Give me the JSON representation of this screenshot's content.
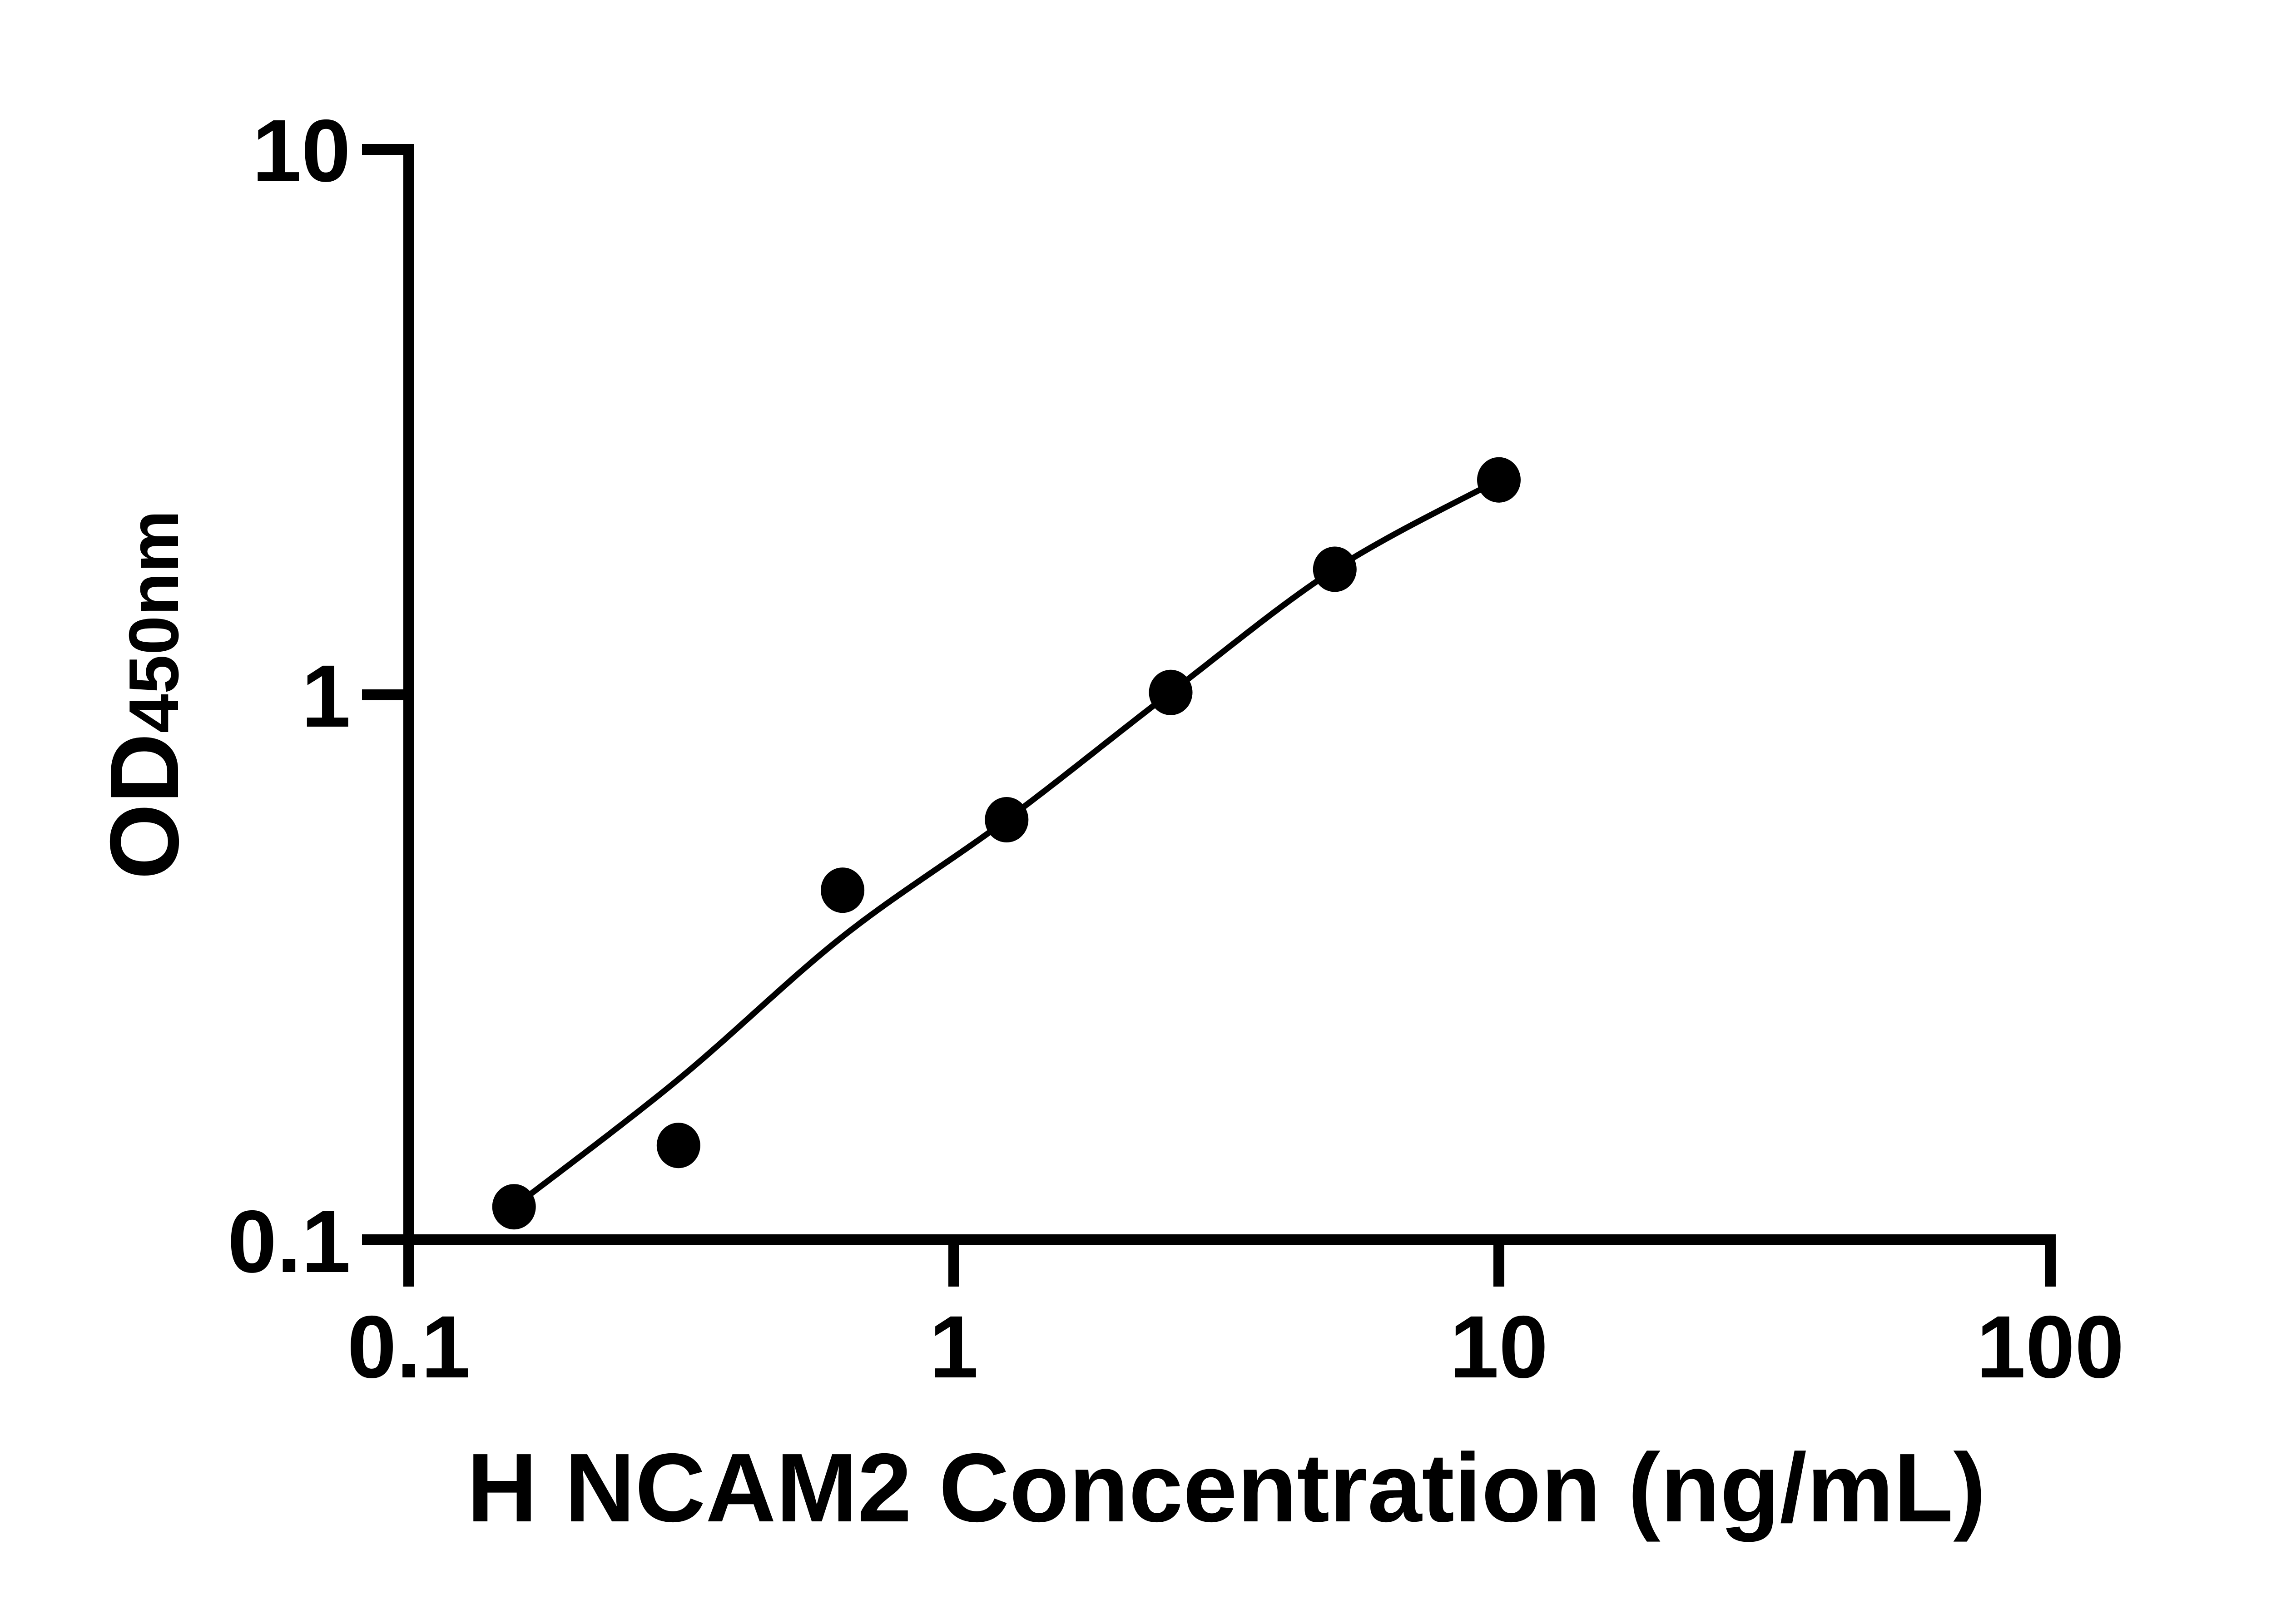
{
  "page": {
    "background": "#ffffff",
    "foreground": "#000000"
  },
  "chart_data": {
    "type": "scatter",
    "title": "",
    "xlabel": "H NCAM2 Concentration (ng/mL)",
    "ylabel_base": "OD",
    "ylabel_subscript": "450nm",
    "xscale": "log",
    "yscale": "log",
    "xlim": [
      0.1,
      100
    ],
    "ylim": [
      0.1,
      10
    ],
    "x_tick_values": [
      0.1,
      1,
      10,
      100
    ],
    "x_tick_labels": [
      "0.1",
      "1",
      "10",
      "100"
    ],
    "y_tick_values": [
      10,
      1,
      0.1
    ],
    "y_tick_labels": [
      "10",
      "1",
      "0.1"
    ],
    "grid": false,
    "legend": false,
    "series": [
      {
        "name": "standard-curve-points",
        "marker": "filled-circle",
        "color": "#000000",
        "x": [
          0.156,
          0.3125,
          0.625,
          1.25,
          2.5,
          5,
          10
        ],
        "y": [
          0.115,
          0.149,
          0.438,
          0.59,
          1.01,
          1.7,
          2.48
        ]
      }
    ],
    "trend_line": {
      "name": "fitted-curve",
      "color": "#000000",
      "points": [
        [
          0.156,
          0.115
        ],
        [
          0.3125,
          0.197
        ],
        [
          0.625,
          0.36
        ],
        [
          1.25,
          0.59
        ],
        [
          2.5,
          1.01
        ],
        [
          5,
          1.7
        ],
        [
          10,
          2.48
        ]
      ]
    }
  }
}
